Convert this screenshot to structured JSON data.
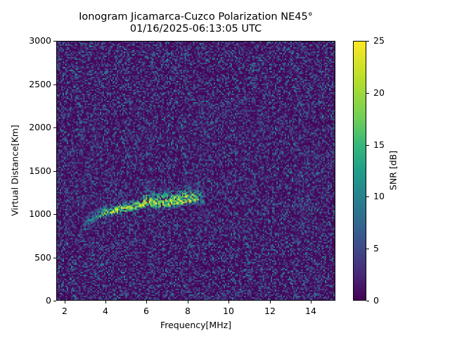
{
  "chart_data": {
    "type": "heatmap",
    "title": "Ionogram Jicamarca-Cuzco Polarization NE45°",
    "subtitle": "01/16/2025-06:13:05 UTC",
    "xlabel": "Frequency[MHz]",
    "ylabel": "Virtual Distance[Km]",
    "colorbar_label": "SNR [dB]",
    "xlim": [
      1.6,
      15.2
    ],
    "ylim": [
      0,
      3000
    ],
    "clim": [
      0,
      25
    ],
    "colormap": "viridis",
    "x_ticks": [
      2,
      4,
      6,
      8,
      10,
      12,
      14
    ],
    "y_ticks": [
      0,
      500,
      1000,
      1500,
      2000,
      2500,
      3000
    ],
    "colorbar_ticks": [
      0,
      5,
      10,
      15,
      20,
      25
    ],
    "grid": false,
    "background_noise_snr_db": [
      0,
      8
    ],
    "echo_trace": {
      "description": "Strong oblique echo trace rising from ~3 MHz to ~8.8 MHz",
      "points": [
        {
          "freq_mhz": 2.9,
          "distance_km": 870,
          "snr_db": 8
        },
        {
          "freq_mhz": 3.5,
          "distance_km": 960,
          "snr_db": 15
        },
        {
          "freq_mhz": 4.0,
          "distance_km": 1020,
          "snr_db": 22
        },
        {
          "freq_mhz": 4.5,
          "distance_km": 1040,
          "snr_db": 25
        },
        {
          "freq_mhz": 5.0,
          "distance_km": 1060,
          "snr_db": 23
        },
        {
          "freq_mhz": 5.5,
          "distance_km": 1080,
          "snr_db": 22
        },
        {
          "freq_mhz": 6.0,
          "distance_km": 1120,
          "snr_db": 25
        },
        {
          "freq_mhz": 6.5,
          "distance_km": 1110,
          "snr_db": 22
        },
        {
          "freq_mhz": 7.0,
          "distance_km": 1120,
          "snr_db": 23
        },
        {
          "freq_mhz": 7.5,
          "distance_km": 1130,
          "snr_db": 25
        },
        {
          "freq_mhz": 8.0,
          "distance_km": 1150,
          "snr_db": 25
        },
        {
          "freq_mhz": 8.5,
          "distance_km": 1160,
          "snr_db": 20
        },
        {
          "freq_mhz": 8.8,
          "distance_km": 1150,
          "snr_db": 12
        }
      ],
      "vertical_spread_km": [
        900,
        1450
      ]
    },
    "notes": "Isolated bright pixels near 3 MHz / 450 km and 12.3 MHz / 2000 km"
  },
  "colors": {
    "viridis_low": "#440154",
    "viridis_high": "#fde725",
    "axis": "#000000",
    "background": "#ffffff"
  }
}
